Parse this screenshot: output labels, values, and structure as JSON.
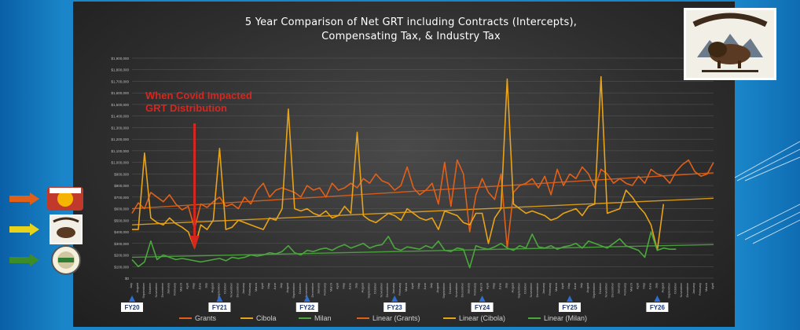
{
  "chart_data": {
    "type": "line",
    "title": "5 Year Comparison of Net GRT including Contracts (Intercepts),\nCompensating Tax, & Industry Tax",
    "annotation": {
      "text": "When Covid Impacted GRT Distribution",
      "x_index": 10,
      "color": "#d8261e"
    },
    "ylim": [
      0,
      1900000
    ],
    "yticks": [
      "$0",
      "$100,000",
      "$200,000",
      "$300,000",
      "$400,000",
      "$500,000",
      "$600,000",
      "$700,000",
      "$800,000",
      "$900,000",
      "$1,000,000",
      "$1,100,000",
      "$1,200,000",
      "$1,300,000",
      "$1,400,000",
      "$1,500,000",
      "$1,600,000",
      "$1,700,000",
      "$1,800,000",
      "$1,900,000"
    ],
    "months": [
      "July",
      "August",
      "September",
      "October",
      "November",
      "December",
      "January",
      "February",
      "March",
      "April",
      "May",
      "June"
    ],
    "fiscal_years": [
      "FY20",
      "FY21",
      "FY22",
      "FY23",
      "FY24",
      "FY25",
      "FY26"
    ],
    "series": [
      {
        "name": "Grants",
        "color": "#e0601a",
        "values": [
          560,
          650,
          600,
          740,
          700,
          660,
          720,
          640,
          590,
          620,
          430,
          640,
          610,
          660,
          700,
          620,
          640,
          600,
          700,
          640,
          760,
          820,
          700,
          760,
          780,
          760,
          740,
          700,
          800,
          760,
          780,
          700,
          820,
          760,
          780,
          820,
          780,
          860,
          820,
          900,
          840,
          820,
          760,
          800,
          960,
          780,
          720,
          760,
          820,
          640,
          1000,
          620,
          1020,
          900,
          400,
          720,
          860,
          740,
          680,
          900,
          260,
          740,
          800,
          820,
          860,
          780,
          880,
          720,
          940,
          800,
          900,
          860,
          960,
          900,
          780,
          940,
          900,
          820,
          860,
          820,
          800,
          880,
          820,
          940,
          900,
          880,
          820,
          920,
          980,
          1020,
          920,
          880,
          900,
          1000
        ]
      },
      {
        "name": "Cibola",
        "color": "#e8a317",
        "values": [
          420,
          420,
          1080,
          520,
          480,
          460,
          520,
          470,
          440,
          400,
          260,
          460,
          420,
          500,
          1120,
          420,
          440,
          500,
          480,
          460,
          440,
          420,
          520,
          500,
          600,
          1460,
          600,
          580,
          600,
          560,
          540,
          580,
          520,
          540,
          620,
          560,
          1260,
          540,
          500,
          480,
          520,
          560,
          540,
          500,
          600,
          560,
          520,
          500,
          520,
          420,
          580,
          560,
          540,
          480,
          460,
          560,
          560,
          300,
          520,
          600,
          1720,
          640,
          600,
          560,
          580,
          560,
          540,
          500,
          520,
          560,
          580,
          600,
          540,
          620,
          640,
          1740,
          560,
          580,
          600,
          760,
          700,
          620,
          560,
          460,
          240,
          640
        ]
      },
      {
        "name": "Milan",
        "color": "#4aa83c",
        "values": [
          160,
          100,
          140,
          320,
          160,
          200,
          180,
          160,
          170,
          160,
          150,
          140,
          150,
          160,
          170,
          150,
          180,
          170,
          180,
          200,
          190,
          200,
          220,
          210,
          230,
          280,
          220,
          200,
          240,
          230,
          250,
          260,
          240,
          270,
          290,
          260,
          280,
          300,
          260,
          280,
          290,
          360,
          260,
          240,
          270,
          260,
          250,
          280,
          260,
          320,
          240,
          230,
          260,
          250,
          90,
          280,
          260,
          250,
          270,
          300,
          260,
          240,
          280,
          260,
          380,
          270,
          260,
          280,
          250,
          270,
          280,
          300,
          260,
          320,
          300,
          280,
          260,
          300,
          340,
          280,
          260,
          240,
          180,
          400,
          240,
          260,
          250,
          250
        ]
      }
    ],
    "trendlines": [
      {
        "name": "Linear (Grants)",
        "color": "#e0601a",
        "start": 600,
        "end": 910
      },
      {
        "name": "Linear (Cibola)",
        "color": "#e8a317",
        "start": 460,
        "end": 690
      },
      {
        "name": "Linear (Milan)",
        "color": "#4aa83c",
        "start": 180,
        "end": 290
      }
    ],
    "legend": [
      "Grants",
      "Cibola",
      "Milan",
      "Linear (Grants)",
      "Linear (Cibola)",
      "Linear (Milan)"
    ],
    "legend_position": "bottom",
    "grid": true
  }
}
